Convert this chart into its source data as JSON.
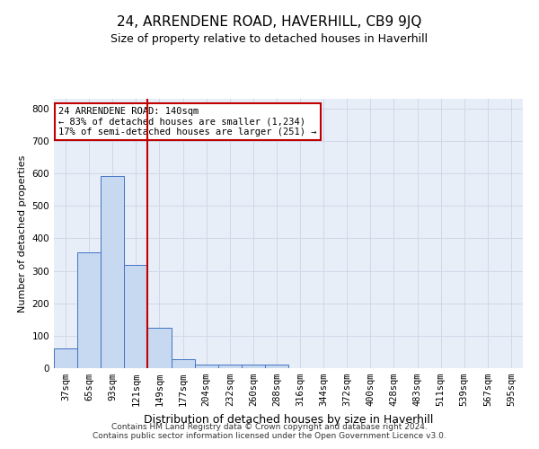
{
  "title": "24, ARRENDENE ROAD, HAVERHILL, CB9 9JQ",
  "subtitle": "Size of property relative to detached houses in Haverhill",
  "xlabel": "Distribution of detached houses by size in Haverhill",
  "ylabel": "Number of detached properties",
  "bar_labels": [
    "37sqm",
    "65sqm",
    "93sqm",
    "121sqm",
    "149sqm",
    "177sqm",
    "204sqm",
    "232sqm",
    "260sqm",
    "288sqm",
    "316sqm",
    "344sqm",
    "372sqm",
    "400sqm",
    "428sqm",
    "483sqm",
    "511sqm",
    "539sqm",
    "567sqm",
    "595sqm"
  ],
  "bar_heights": [
    60,
    358,
    593,
    318,
    125,
    28,
    10,
    10,
    10,
    10,
    0,
    0,
    0,
    0,
    0,
    0,
    0,
    0,
    0,
    0
  ],
  "bar_color": "#c6d9f0",
  "bar_edge_color": "#4472c4",
  "vline_pos": 3.5,
  "vline_color": "#c00000",
  "annotation_text": "24 ARRENDENE ROAD: 140sqm\n← 83% of detached houses are smaller (1,234)\n17% of semi-detached houses are larger (251) →",
  "annotation_box_color": "#ffffff",
  "annotation_box_edge": "#c00000",
  "ylim": [
    0,
    830
  ],
  "yticks": [
    0,
    100,
    200,
    300,
    400,
    500,
    600,
    700,
    800
  ],
  "grid_color": "#d0d8e8",
  "background_color": "#e8eef8",
  "footer_line1": "Contains HM Land Registry data © Crown copyright and database right 2024.",
  "footer_line2": "Contains public sector information licensed under the Open Government Licence v3.0.",
  "title_fontsize": 11,
  "subtitle_fontsize": 9,
  "xlabel_fontsize": 9,
  "ylabel_fontsize": 8,
  "tick_fontsize": 7.5,
  "footer_fontsize": 6.5
}
